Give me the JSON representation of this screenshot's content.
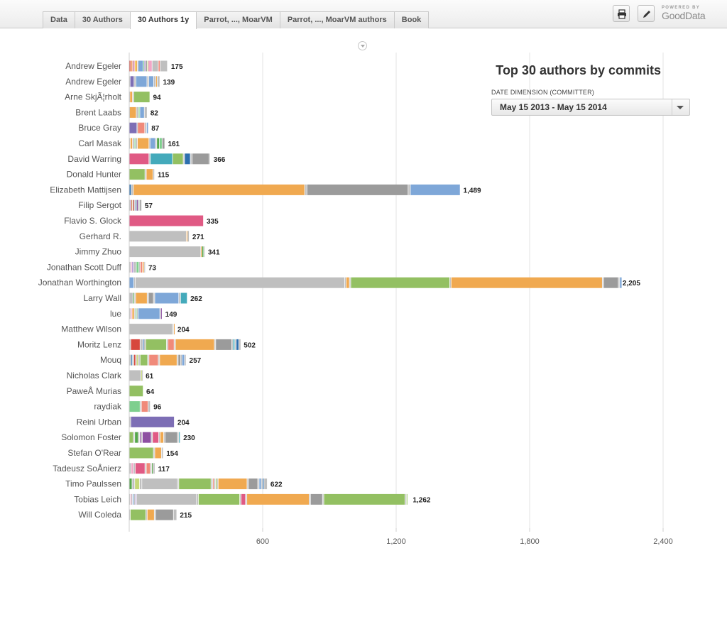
{
  "tabs": [
    {
      "label": "Data",
      "active": false
    },
    {
      "label": "30 Authors",
      "active": false
    },
    {
      "label": "30 Authors 1y",
      "active": true
    },
    {
      "label": "Parrot, ..., MoarVM",
      "active": false
    },
    {
      "label": "Parrot, ..., MoarVM authors",
      "active": false
    },
    {
      "label": "Book",
      "active": false
    }
  ],
  "toolbar": {
    "print_icon": "printer-icon",
    "edit_icon": "pencil-icon"
  },
  "branding": {
    "powered_by": "POWERED BY",
    "logo_text": "GoodData"
  },
  "filter": {
    "label": "DATE DIMENSION (COMMITTER)",
    "value": "May 15 2013 - May 15 2014"
  },
  "colors": {
    "palette": {
      "red": "#d7473d",
      "orange": "#f0a950",
      "blue": "#7ea7d8",
      "green": "#93c062",
      "grey": "#bfbfbf",
      "dgrey": "#9b9b9b",
      "purple": "#7d6eb5",
      "violet": "#8e50a2",
      "pink": "#e05a84",
      "salmon": "#f08a7a",
      "teal": "#44aabb",
      "navy": "#2d6fae",
      "lgreen": "#7ecf8e",
      "dgreen": "#56a64c",
      "lime": "#c6d87a",
      "yellow": "#f2d24a",
      "lav": "#b79ed8",
      "lpink": "#f2a6c6"
    }
  },
  "chart_data": {
    "type": "bar",
    "orientation": "horizontal",
    "stacked": true,
    "title": "Top 30 authors by commits",
    "xlim": [
      0,
      2400
    ],
    "xticks": [
      600,
      1200,
      1800,
      2400
    ],
    "tick_labels": [
      "600",
      "1,200",
      "1,800",
      "2,400"
    ],
    "grid": true,
    "categories": [
      "Andrew Egeler",
      "Andrew Egeler",
      "Arne SkjÃ¦rholt",
      "Brent Laabs",
      "Bruce Gray",
      "Carl Masak",
      "David Warring",
      "Donald Hunter",
      "Elizabeth Mattijsen",
      "Filip Sergot",
      "Flavio S. Glock",
      "Gerhard R.",
      "Jimmy Zhuo",
      "Jonathan Scott Duff",
      "Jonathan Worthington",
      "Larry Wall",
      "lue",
      "Matthew Wilson",
      "Moritz Lenz",
      "Mouq",
      "Nicholas Clark",
      "PaweÅ Murias",
      "raydiak",
      "Reini Urban",
      "Solomon Foster",
      "Stefan O'Rear",
      "Tadeusz SoÅnierz",
      "Timo Paulssen",
      "Tobias Leich",
      "Will Coleda"
    ],
    "totals": [
      175,
      139,
      94,
      82,
      87,
      161,
      366,
      115,
      1489,
      57,
      335,
      271,
      341,
      73,
      2205,
      262,
      149,
      204,
      502,
      257,
      61,
      64,
      96,
      204,
      230,
      154,
      117,
      622,
      1262,
      215
    ],
    "total_labels": [
      "175",
      "139",
      "94",
      "82",
      "87",
      "161",
      "366",
      "115",
      "1,489",
      "57",
      "335",
      "271",
      "341",
      "73",
      "2,205",
      "262",
      "149",
      "204",
      "502",
      "257",
      "61",
      "64",
      "96",
      "204",
      "230",
      "154",
      "117",
      "622",
      "1,262",
      "215"
    ],
    "segments": [
      [
        [
          8,
          "red"
        ],
        [
          3,
          "orange"
        ],
        [
          6,
          "salmon"
        ],
        [
          3,
          "grey"
        ],
        [
          6,
          "pink"
        ],
        [
          4,
          "yellow"
        ],
        [
          8,
          "orange"
        ],
        [
          4,
          "grey"
        ],
        [
          22,
          "blue"
        ],
        [
          4,
          "lgreen"
        ],
        [
          6,
          "lav"
        ],
        [
          8,
          "dgrey"
        ],
        [
          4,
          "lime"
        ],
        [
          18,
          "lpink"
        ],
        [
          28,
          "grey"
        ],
        [
          8,
          "salmon"
        ],
        [
          33,
          "grey"
        ]
      ],
      [
        [
          5,
          "grey"
        ],
        [
          18,
          "purple"
        ],
        [
          8,
          "grey"
        ],
        [
          50,
          "blue"
        ],
        [
          8,
          "grey"
        ],
        [
          22,
          "blue"
        ],
        [
          10,
          "grey"
        ],
        [
          6,
          "orange"
        ],
        [
          12,
          "grey"
        ]
      ],
      [
        [
          4,
          "grey"
        ],
        [
          12,
          "orange"
        ],
        [
          6,
          "grey"
        ],
        [
          72,
          "green"
        ]
      ],
      [
        [
          3,
          "grey"
        ],
        [
          30,
          "orange"
        ],
        [
          10,
          "grey"
        ],
        [
          6,
          "lgreen"
        ],
        [
          20,
          "blue"
        ],
        [
          13,
          "grey"
        ]
      ],
      [
        [
          36,
          "purple"
        ],
        [
          3,
          "grey"
        ],
        [
          32,
          "salmon"
        ],
        [
          8,
          "grey"
        ],
        [
          8,
          "blue"
        ]
      ],
      [
        [
          6,
          "grey"
        ],
        [
          10,
          "orange"
        ],
        [
          8,
          "grey"
        ],
        [
          6,
          "lgreen"
        ],
        [
          8,
          "grey"
        ],
        [
          52,
          "orange"
        ],
        [
          5,
          "grey"
        ],
        [
          24,
          "blue"
        ],
        [
          6,
          "grey"
        ],
        [
          12,
          "dgreen"
        ],
        [
          12,
          "lgreen"
        ],
        [
          12,
          "dgrey"
        ]
      ],
      [
        [
          90,
          "pink"
        ],
        [
          6,
          "grey"
        ],
        [
          100,
          "teal"
        ],
        [
          48,
          "green"
        ],
        [
          6,
          "grey"
        ],
        [
          26,
          "navy"
        ],
        [
          8,
          "grey"
        ],
        [
          76,
          "dgrey"
        ],
        [
          6,
          "grey"
        ]
      ],
      [
        [
          72,
          "green"
        ],
        [
          6,
          "grey"
        ],
        [
          30,
          "orange"
        ],
        [
          7,
          "grey"
        ]
      ],
      [
        [
          10,
          "navy"
        ],
        [
          10,
          "grey"
        ],
        [
          770,
          "orange"
        ],
        [
          10,
          "grey"
        ],
        [
          455,
          "dgrey"
        ],
        [
          10,
          "grey"
        ],
        [
          224,
          "blue"
        ]
      ],
      [
        [
          6,
          "grey"
        ],
        [
          4,
          "violet"
        ],
        [
          6,
          "orange"
        ],
        [
          3,
          "grey"
        ],
        [
          5,
          "red"
        ],
        [
          4,
          "grey"
        ],
        [
          4,
          "blue"
        ],
        [
          3,
          "grey"
        ],
        [
          6,
          "violet"
        ],
        [
          8,
          "grey"
        ],
        [
          8,
          "dgrey"
        ]
      ],
      [
        [
          335,
          "pink"
        ]
      ],
      [
        [
          258,
          "grey"
        ],
        [
          5,
          "orange"
        ],
        [
          8,
          "grey"
        ]
      ],
      [
        [
          323,
          "grey"
        ],
        [
          5,
          "orange"
        ],
        [
          8,
          "dgreen"
        ],
        [
          5,
          "grey"
        ]
      ],
      [
        [
          8,
          "grey"
        ],
        [
          5,
          "lpink"
        ],
        [
          8,
          "lav"
        ],
        [
          12,
          "grey"
        ],
        [
          12,
          "lgreen"
        ],
        [
          6,
          "grey"
        ],
        [
          10,
          "salmon"
        ],
        [
          7,
          "orange"
        ],
        [
          5,
          "grey"
        ]
      ],
      [
        [
          22,
          "blue"
        ],
        [
          6,
          "grey"
        ],
        [
          942,
          "grey"
        ],
        [
          6,
          "grey"
        ],
        [
          15,
          "orange"
        ],
        [
          6,
          "grey"
        ],
        [
          445,
          "green"
        ],
        [
          6,
          "grey"
        ],
        [
          680,
          "orange"
        ],
        [
          6,
          "grey"
        ],
        [
          66,
          "dgrey"
        ],
        [
          6,
          "grey"
        ],
        [
          10,
          "blue"
        ]
      ],
      [
        [
          18,
          "grey"
        ],
        [
          6,
          "dgreen"
        ],
        [
          6,
          "grey"
        ],
        [
          52,
          "orange"
        ],
        [
          6,
          "grey"
        ],
        [
          22,
          "dgrey"
        ],
        [
          6,
          "grey"
        ],
        [
          108,
          "blue"
        ],
        [
          8,
          "grey"
        ],
        [
          30,
          "teal"
        ]
      ],
      [
        [
          8,
          "grey"
        ],
        [
          6,
          "lpink"
        ],
        [
          10,
          "orange"
        ],
        [
          6,
          "grey"
        ],
        [
          5,
          "lgreen"
        ],
        [
          6,
          "grey"
        ],
        [
          98,
          "blue"
        ],
        [
          4,
          "grey"
        ],
        [
          6,
          "violet"
        ]
      ],
      [
        [
          195,
          "grey"
        ],
        [
          6,
          "grey"
        ],
        [
          3,
          "orange"
        ]
      ],
      [
        [
          8,
          "grey"
        ],
        [
          42,
          "red"
        ],
        [
          12,
          "grey"
        ],
        [
          5,
          "navy"
        ],
        [
          8,
          "grey"
        ],
        [
          94,
          "green"
        ],
        [
          6,
          "grey"
        ],
        [
          28,
          "salmon"
        ],
        [
          6,
          "grey"
        ],
        [
          175,
          "orange"
        ],
        [
          6,
          "grey"
        ],
        [
          72,
          "dgrey"
        ],
        [
          6,
          "grey"
        ],
        [
          8,
          "teal"
        ],
        [
          6,
          "grey"
        ],
        [
          12,
          "navy"
        ],
        [
          9,
          "grey"
        ]
      ],
      [
        [
          10,
          "grey"
        ],
        [
          6,
          "navy"
        ],
        [
          6,
          "grey"
        ],
        [
          8,
          "red"
        ],
        [
          4,
          "grey"
        ],
        [
          8,
          "lime"
        ],
        [
          8,
          "grey"
        ],
        [
          34,
          "green"
        ],
        [
          6,
          "grey"
        ],
        [
          42,
          "salmon"
        ],
        [
          6,
          "grey"
        ],
        [
          78,
          "orange"
        ],
        [
          5,
          "grey"
        ],
        [
          12,
          "dgrey"
        ],
        [
          5,
          "grey"
        ],
        [
          12,
          "blue"
        ],
        [
          7,
          "grey"
        ]
      ],
      [
        [
          54,
          "grey"
        ],
        [
          4,
          "lime"
        ],
        [
          3,
          "grey"
        ]
      ],
      [
        [
          64,
          "green"
        ]
      ],
      [
        [
          50,
          "lgreen"
        ],
        [
          6,
          "grey"
        ],
        [
          30,
          "salmon"
        ],
        [
          10,
          "grey"
        ]
      ],
      [
        [
          8,
          "grey"
        ],
        [
          196,
          "purple"
        ]
      ],
      [
        [
          20,
          "green"
        ],
        [
          6,
          "grey"
        ],
        [
          16,
          "dgreen"
        ],
        [
          6,
          "grey"
        ],
        [
          6,
          "violet"
        ],
        [
          6,
          "grey"
        ],
        [
          40,
          "violet"
        ],
        [
          6,
          "grey"
        ],
        [
          28,
          "pink"
        ],
        [
          6,
          "grey"
        ],
        [
          16,
          "orange"
        ],
        [
          6,
          "grey"
        ],
        [
          56,
          "dgrey"
        ],
        [
          6,
          "grey"
        ],
        [
          6,
          "teal"
        ]
      ],
      [
        [
          110,
          "green"
        ],
        [
          6,
          "grey"
        ],
        [
          30,
          "orange"
        ],
        [
          8,
          "grey"
        ]
      ],
      [
        [
          10,
          "grey"
        ],
        [
          10,
          "lpink"
        ],
        [
          8,
          "grey"
        ],
        [
          44,
          "pink"
        ],
        [
          6,
          "grey"
        ],
        [
          18,
          "salmon"
        ],
        [
          6,
          "grey"
        ],
        [
          6,
          "dgreen"
        ],
        [
          9,
          "grey"
        ]
      ],
      [
        [
          14,
          "dgreen"
        ],
        [
          12,
          "grey"
        ],
        [
          22,
          "lime"
        ],
        [
          10,
          "grey"
        ],
        [
          160,
          "grey"
        ],
        [
          6,
          "grey"
        ],
        [
          145,
          "green"
        ],
        [
          8,
          "grey"
        ],
        [
          6,
          "salmon"
        ],
        [
          6,
          "grey"
        ],
        [
          6,
          "green"
        ],
        [
          6,
          "grey"
        ],
        [
          130,
          "orange"
        ],
        [
          6,
          "grey"
        ],
        [
          42,
          "dgrey"
        ],
        [
          6,
          "grey"
        ],
        [
          10,
          "blue"
        ],
        [
          6,
          "grey"
        ],
        [
          6,
          "navy"
        ],
        [
          15,
          "grey"
        ]
      ],
      [
        [
          6,
          "grey"
        ],
        [
          4,
          "lpink"
        ],
        [
          6,
          "grey"
        ],
        [
          6,
          "blue"
        ],
        [
          6,
          "grey"
        ],
        [
          6,
          "lav"
        ],
        [
          270,
          "grey"
        ],
        [
          8,
          "grey"
        ],
        [
          186,
          "green"
        ],
        [
          6,
          "grey"
        ],
        [
          20,
          "pink"
        ],
        [
          6,
          "grey"
        ],
        [
          280,
          "orange"
        ],
        [
          6,
          "grey"
        ],
        [
          54,
          "dgrey"
        ],
        [
          6,
          "grey"
        ],
        [
          365,
          "green"
        ],
        [
          6,
          "grey"
        ],
        [
          5,
          "green"
        ]
      ],
      [
        [
          6,
          "grey"
        ],
        [
          70,
          "green"
        ],
        [
          6,
          "grey"
        ],
        [
          32,
          "orange"
        ],
        [
          6,
          "grey"
        ],
        [
          80,
          "dgrey"
        ],
        [
          15,
          "grey"
        ]
      ]
    ]
  }
}
